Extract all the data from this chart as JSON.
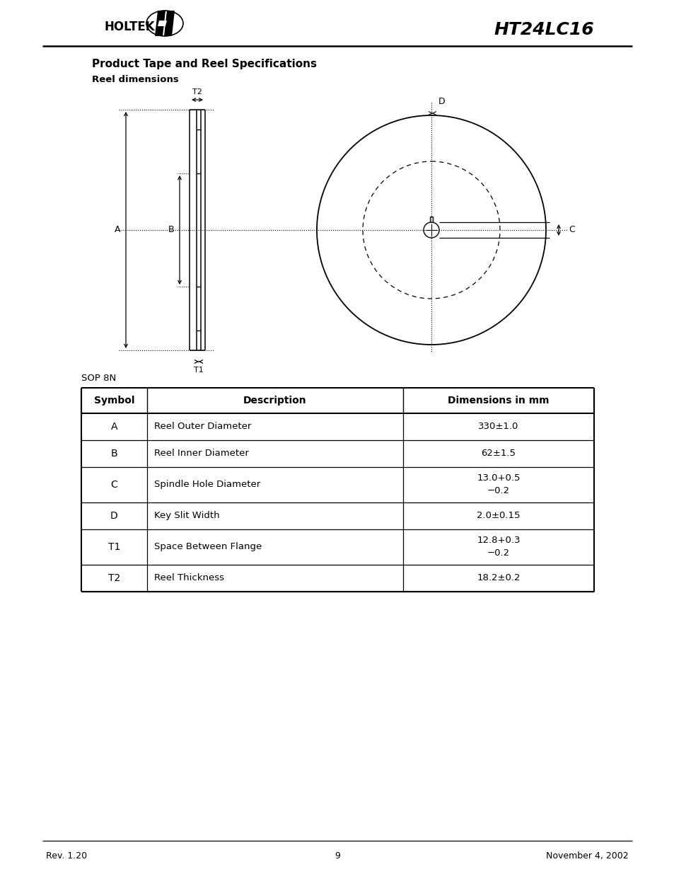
{
  "title": "HT24LC16",
  "section_title": "Product Tape and Reel Specifications",
  "sub_title": "Reel dimensions",
  "package_label": "SOP 8N",
  "table_headers": [
    "Symbol",
    "Description",
    "Dimensions in mm"
  ],
  "table_rows": [
    [
      "A",
      "Reel Outer Diameter",
      "330±1.0"
    ],
    [
      "B",
      "Reel Inner Diameter",
      "62±1.5"
    ],
    [
      "C",
      "Spindle Hole Diameter",
      "13.0+0.5\n−0.2"
    ],
    [
      "D",
      "Key Slit Width",
      "2.0±0.15"
    ],
    [
      "T1",
      "Space Between Flange",
      "12.8+0.3\n−0.2"
    ],
    [
      "T2",
      "Reel Thickness",
      "18.2±0.2"
    ]
  ],
  "footer_left": "Rev. 1.20",
  "footer_center": "9",
  "footer_right": "November 4, 2002",
  "bg_color": "#ffffff",
  "text_color": "#000000"
}
